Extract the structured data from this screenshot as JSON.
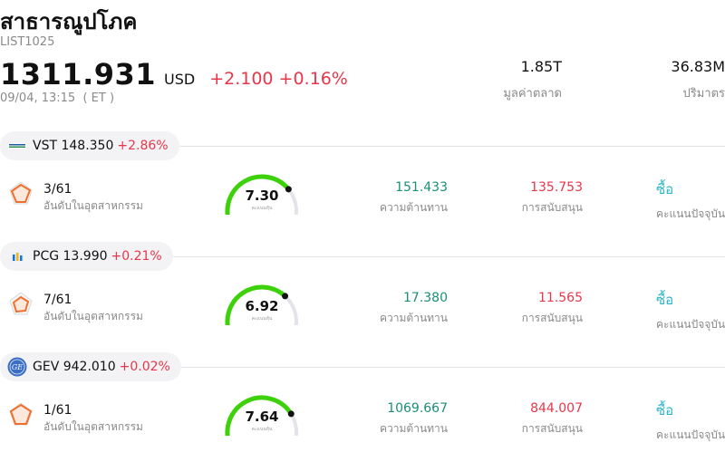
{
  "header": {
    "title": "สาธารณูปโภค",
    "code": "LIST1025",
    "price": "1311.931",
    "currency": "USD",
    "change": "+2.100 +0.16%",
    "timestamp": "09/04, 13:15  ( ET )"
  },
  "stats": [
    {
      "value": "1.85T",
      "label": "มูลค่าตลาด"
    },
    {
      "value": "36.83M",
      "label": "ปริมาตร"
    }
  ],
  "stocks": [
    {
      "symbol": "VST 148.350",
      "change": "+2.86%",
      "logo_icon": "vistra-logo-icon",
      "rank": "3/61",
      "rank_label": "อันดับในอุตสาหกรรม",
      "score": "7.30",
      "score_fraction": 0.73,
      "score_caption": "คะแนนหุ้น",
      "resistance": "151.433",
      "resistance_label": "ความต้านทาน",
      "support": "135.753",
      "support_label": "การสนับสนุน",
      "signal": "ซื้อ",
      "signal_label": "คะแนนปัจจุบัน"
    },
    {
      "symbol": "PCG 13.990",
      "change": "+0.21%",
      "logo_icon": "pge-logo-icon",
      "rank": "7/61",
      "rank_label": "อันดับในอุตสาหกรรม",
      "score": "6.92",
      "score_fraction": 0.692,
      "score_caption": "คะแนนหุ้น",
      "resistance": "17.380",
      "resistance_label": "ความต้านทาน",
      "support": "11.565",
      "support_label": "การสนับสนุน",
      "signal": "ซื้อ",
      "signal_label": "คะแนนปัจจุบัน"
    },
    {
      "symbol": "GEV 942.010",
      "change": "+0.02%",
      "logo_icon": "ge-logo-icon",
      "rank": "1/61",
      "rank_label": "อันดับในอุตสาหกรรม",
      "score": "7.64",
      "score_fraction": 0.764,
      "score_caption": "คะแนนหุ้น",
      "resistance": "1069.667",
      "resistance_label": "ความต้านทาน",
      "support": "844.007",
      "support_label": "การสนับสนุน",
      "signal": "ซื้อ",
      "signal_label": "คะแนนปัจจุบัน"
    }
  ],
  "colors": {
    "up": "#e8364a",
    "resistance": "#1a8f78",
    "gauge": "#3dd10a",
    "signal": "#2ab5c8"
  }
}
